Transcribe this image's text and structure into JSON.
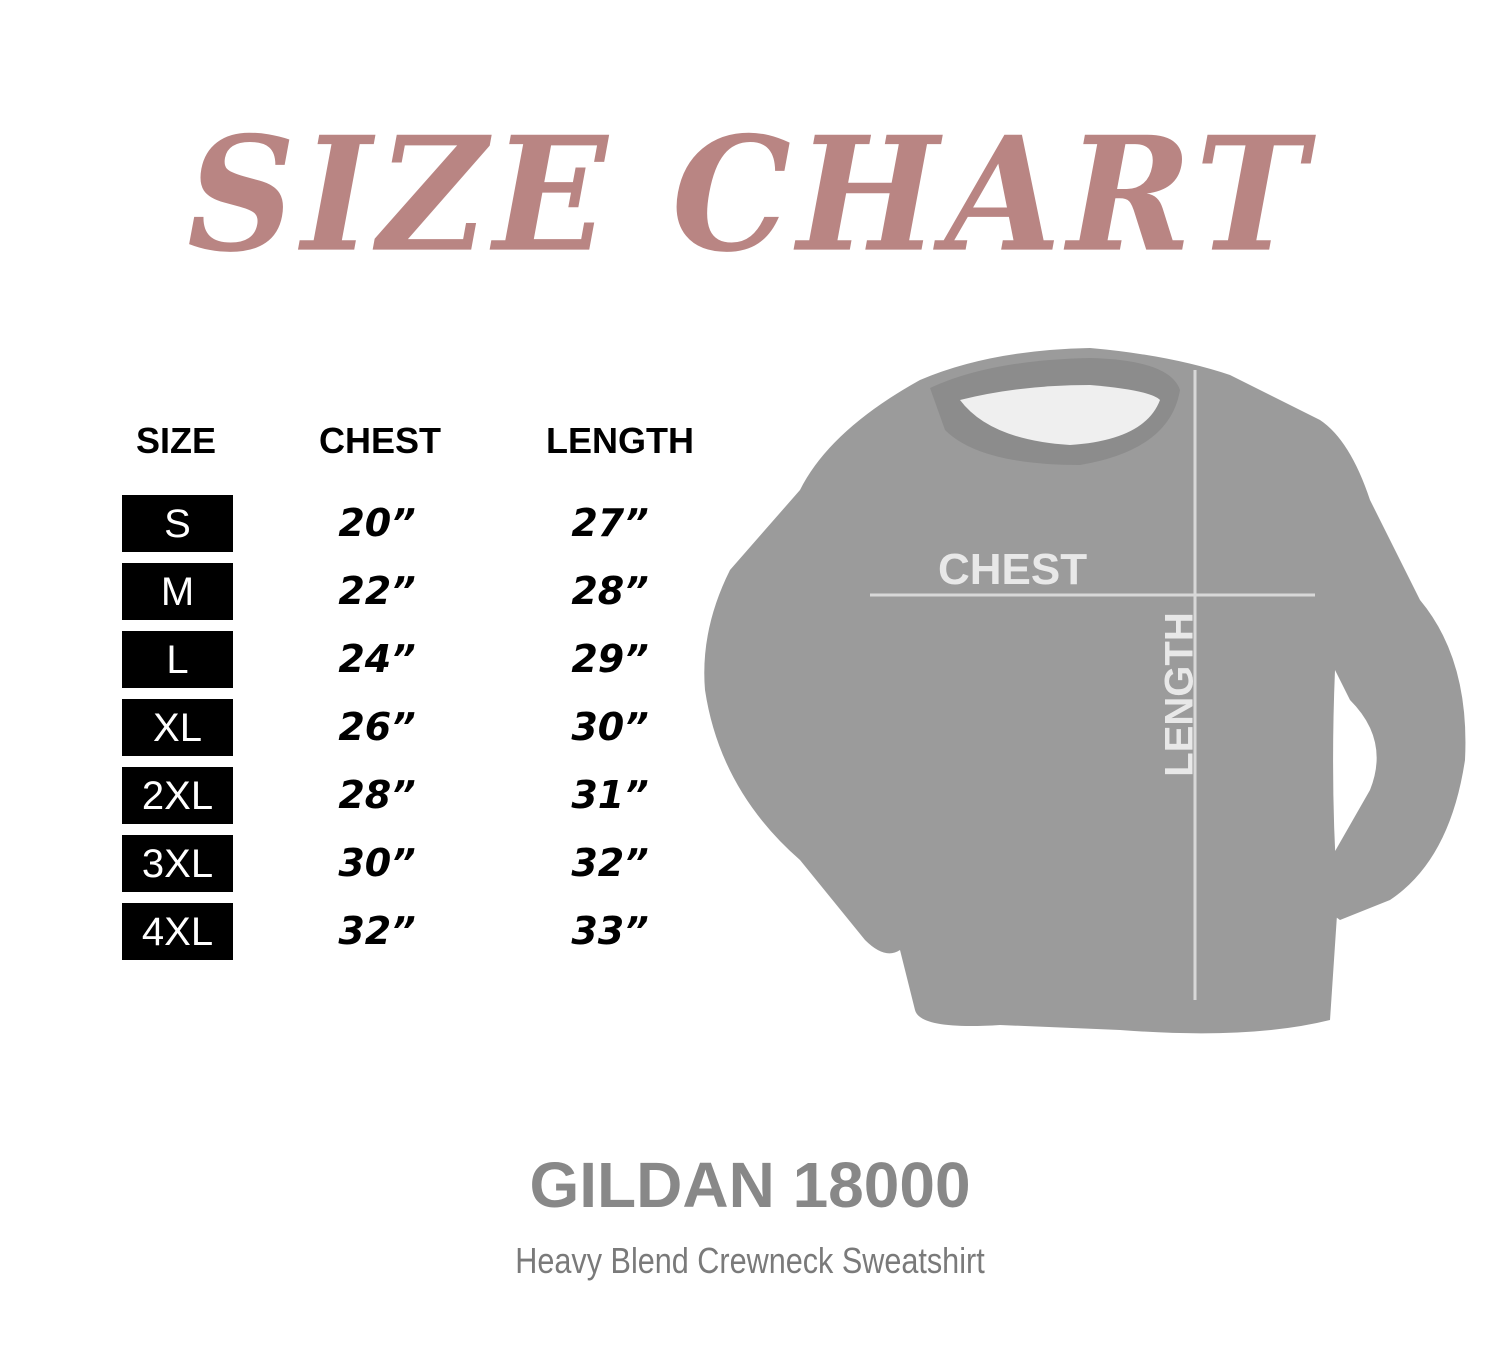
{
  "title": "SIZE CHART",
  "colors": {
    "title": "#b98583",
    "size_box": "#000000",
    "shirt": "#9a9a9a",
    "brand": "#888888"
  },
  "table": {
    "headers": [
      "SIZE",
      "CHEST",
      "LENGTH"
    ],
    "rows": [
      {
        "size": "S",
        "chest": "20”",
        "length": "27”"
      },
      {
        "size": "M",
        "chest": "22”",
        "length": "28”"
      },
      {
        "size": "L",
        "chest": "24”",
        "length": "29”"
      },
      {
        "size": "XL",
        "chest": "26”",
        "length": "30”"
      },
      {
        "size": "2XL",
        "chest": "28”",
        "length": "31”"
      },
      {
        "size": "3XL",
        "chest": "30”",
        "length": "32”"
      },
      {
        "size": "4XL",
        "chest": "32”",
        "length": "33”"
      }
    ]
  },
  "diagram": {
    "chest_label": "CHEST",
    "length_label": "LENGTH"
  },
  "footer": {
    "brand": "GILDAN 18000",
    "description": "Heavy Blend Crewneck Sweatshirt"
  }
}
